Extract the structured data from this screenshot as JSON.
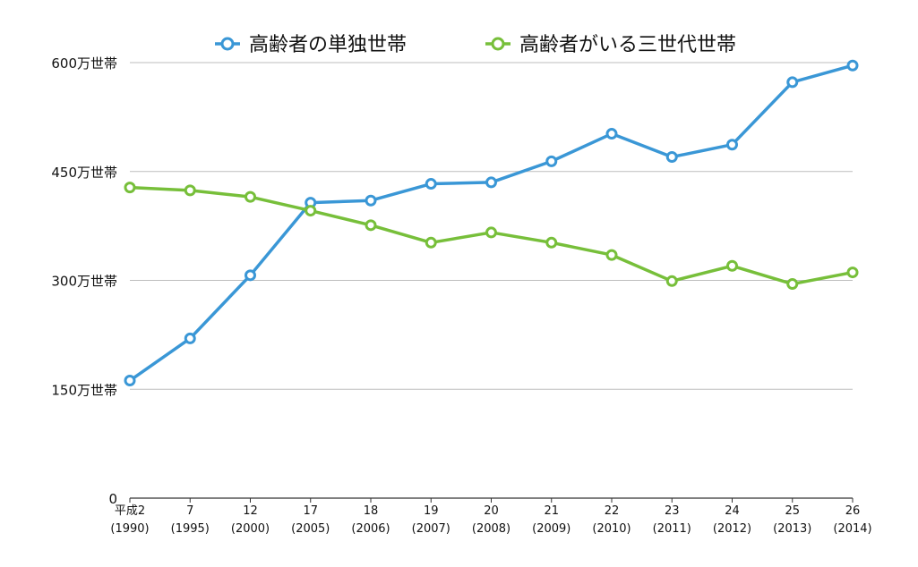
{
  "chart_data": {
    "type": "line",
    "categories": [
      {
        "era": "平成2",
        "year": "(1990)"
      },
      {
        "era": "7",
        "year": "(1995)"
      },
      {
        "era": "12",
        "year": "(2000)"
      },
      {
        "era": "17",
        "year": "(2005)"
      },
      {
        "era": "18",
        "year": "(2006)"
      },
      {
        "era": "19",
        "year": "(2007)"
      },
      {
        "era": "20",
        "year": "(2008)"
      },
      {
        "era": "21",
        "year": "(2009)"
      },
      {
        "era": "22",
        "year": "(2010)"
      },
      {
        "era": "23",
        "year": "(2011)"
      },
      {
        "era": "24",
        "year": "(2012)"
      },
      {
        "era": "25",
        "year": "(2013)"
      },
      {
        "era": "26",
        "year": "(2014)"
      }
    ],
    "series": [
      {
        "name": "高齢者の単独世帯",
        "color": "#3a97d6",
        "values": [
          162,
          220,
          307,
          407,
          410,
          433,
          435,
          464,
          502,
          470,
          487,
          573,
          596
        ]
      },
      {
        "name": "高齢者がいる三世代世帯",
        "color": "#77bf3a",
        "values": [
          428,
          424,
          415,
          396,
          376,
          352,
          366,
          352,
          335,
          299,
          320,
          295,
          311
        ]
      }
    ],
    "yticks": [
      {
        "value": 0,
        "label": "0"
      },
      {
        "value": 150,
        "label": "150万世帯"
      },
      {
        "value": 300,
        "label": "300万世帯"
      },
      {
        "value": 450,
        "label": "450万世帯"
      },
      {
        "value": 600,
        "label": "600万世帯"
      }
    ],
    "ylim": [
      0,
      600
    ],
    "grid": true,
    "legend_position": "top"
  }
}
